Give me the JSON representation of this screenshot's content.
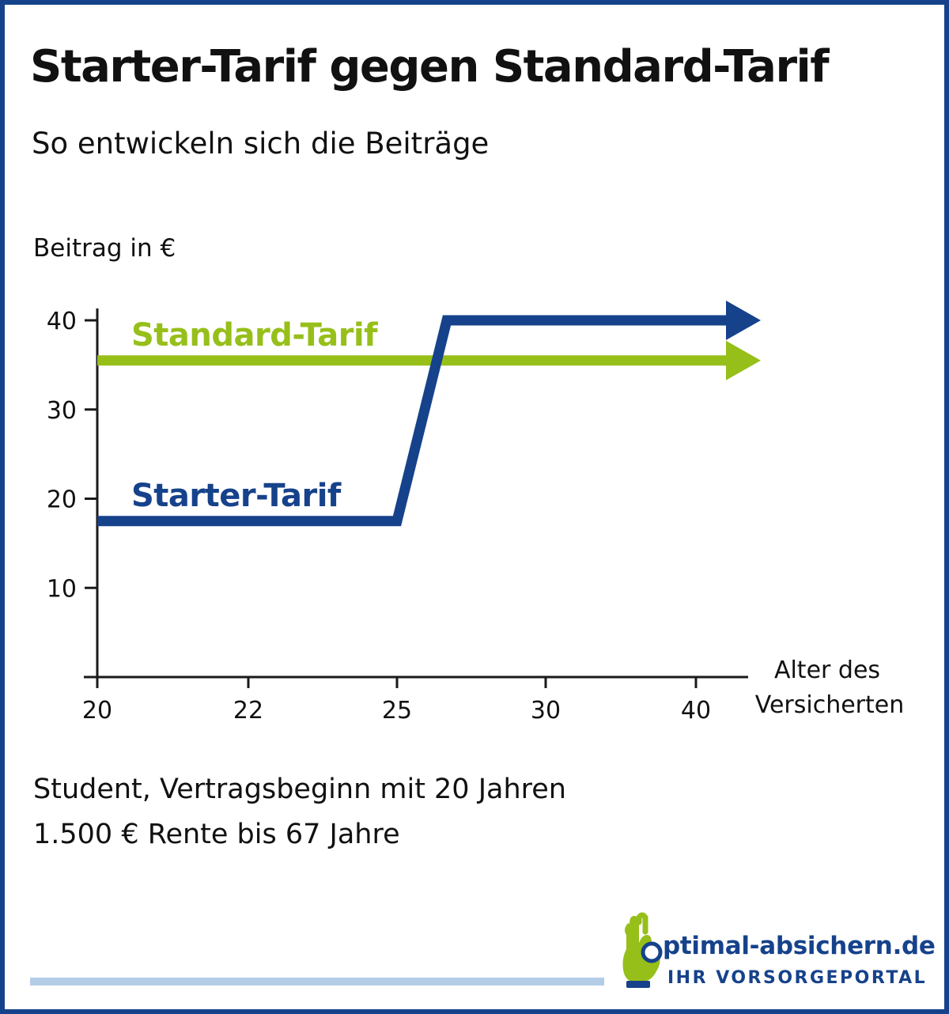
{
  "title": "Starter-Tarif gegen Standard-Tarif",
  "subtitle": "So entwickeln sich die Beiträge",
  "notes": {
    "line1": "Student, Vertragsbeginn mit 20 Jahren",
    "line2": "1.500 € Rente bis 67 Jahre"
  },
  "logo": {
    "main": "ptimal-absichern.de",
    "tagline": "IHR VORSORGEPORTAL",
    "icon": "ok-hand-icon"
  },
  "colors": {
    "frame": "#16428b",
    "starter": "#16428b",
    "standard": "#97bf1a",
    "axis": "#1a1a1a",
    "bottom_bar": "#b4cde6"
  },
  "chart_data": {
    "type": "line",
    "title": "",
    "ylabel": "Beitrag in €",
    "xlabel": "Alter des Versicherten",
    "x_ticks": [
      20,
      22,
      25,
      30,
      40
    ],
    "y_ticks": [
      10,
      20,
      30,
      40
    ],
    "ylim": [
      0,
      40
    ],
    "grid": false,
    "legend": "inline labels on lines",
    "series": [
      {
        "name": "Standard-Tarif",
        "color": "#97bf1a",
        "points": [
          {
            "x": 20,
            "y": 35.5
          },
          {
            "x": 40,
            "y": 35.5
          }
        ],
        "arrow_end": true
      },
      {
        "name": "Starter-Tarif",
        "color": "#16428b",
        "points": [
          {
            "x": 20,
            "y": 17.5
          },
          {
            "x": 25,
            "y": 17.5
          },
          {
            "x": 26,
            "y": 40
          },
          {
            "x": 40,
            "y": 40
          }
        ],
        "arrow_end": true
      }
    ]
  }
}
